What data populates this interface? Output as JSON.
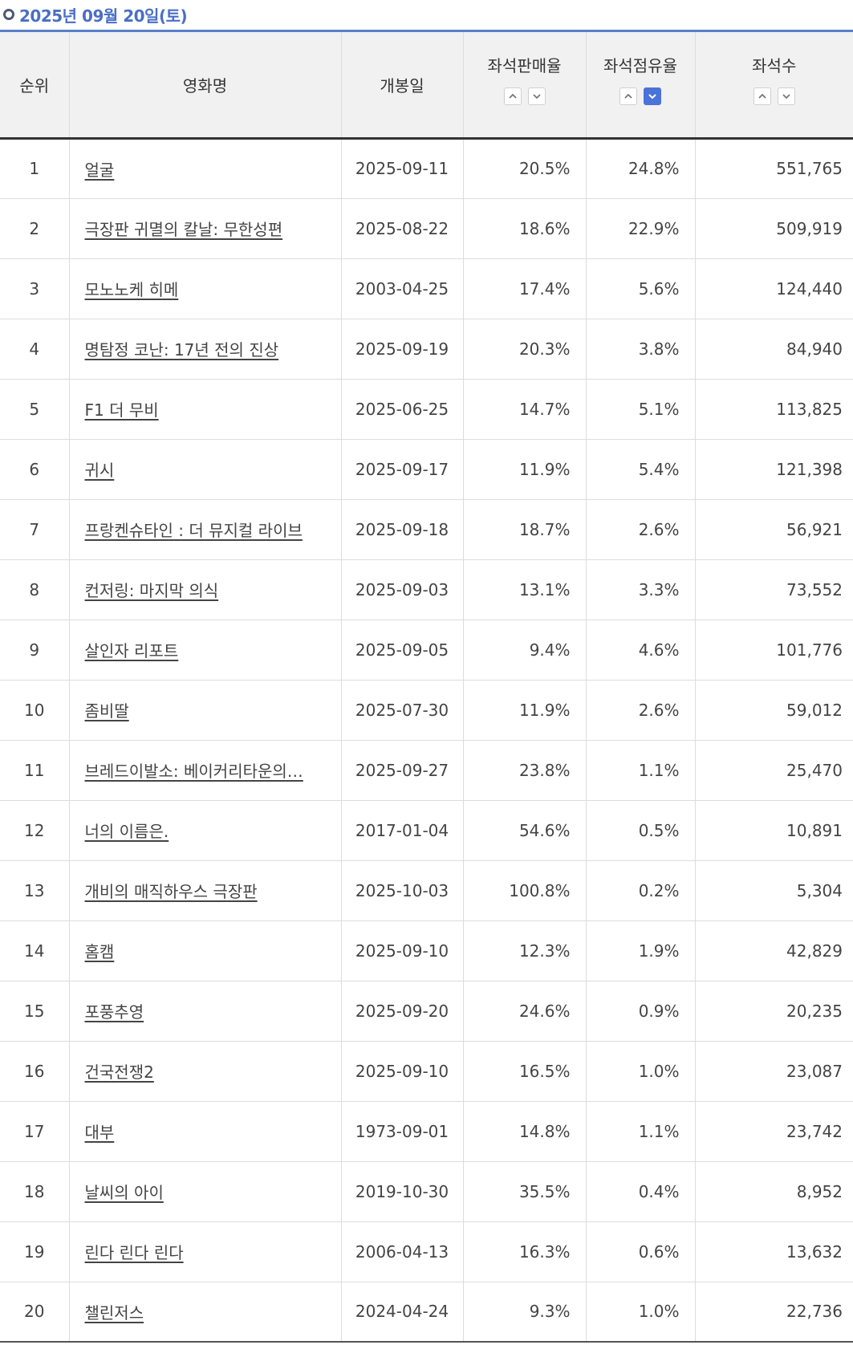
{
  "header": {
    "date_title": "2025년 09월 20일(토)"
  },
  "columns": {
    "rank": "순위",
    "title": "영화명",
    "release_date": "개봉일",
    "seat_sales_rate": "좌석판매율",
    "seat_share_rate": "좌석점유율",
    "seat_count": "좌석수"
  },
  "sort_icons": {
    "up": "chevron-up-icon",
    "down": "chevron-down-icon",
    "active_sort": "seat_share_rate-desc",
    "active_color": "#4a72d9"
  },
  "colors": {
    "accent": "#4a6fc4",
    "header_rule": "#5a7fc9"
  },
  "rows": [
    {
      "rank": "1",
      "title": "얼굴",
      "release_date": "2025-09-11",
      "seat_sales_rate": "20.5%",
      "seat_share_rate": "24.8%",
      "seat_count": "551,765"
    },
    {
      "rank": "2",
      "title": "극장판 귀멸의 칼날: 무한성편",
      "release_date": "2025-08-22",
      "seat_sales_rate": "18.6%",
      "seat_share_rate": "22.9%",
      "seat_count": "509,919"
    },
    {
      "rank": "3",
      "title": "모노노케 히메",
      "release_date": "2003-04-25",
      "seat_sales_rate": "17.4%",
      "seat_share_rate": "5.6%",
      "seat_count": "124,440"
    },
    {
      "rank": "4",
      "title": "명탐정 코난: 17년 전의 진상",
      "release_date": "2025-09-19",
      "seat_sales_rate": "20.3%",
      "seat_share_rate": "3.8%",
      "seat_count": "84,940"
    },
    {
      "rank": "5",
      "title": "F1 더 무비",
      "release_date": "2025-06-25",
      "seat_sales_rate": "14.7%",
      "seat_share_rate": "5.1%",
      "seat_count": "113,825"
    },
    {
      "rank": "6",
      "title": "귀시",
      "release_date": "2025-09-17",
      "seat_sales_rate": "11.9%",
      "seat_share_rate": "5.4%",
      "seat_count": "121,398"
    },
    {
      "rank": "7",
      "title": "프랑켄슈타인 : 더 뮤지컬 라이브",
      "release_date": "2025-09-18",
      "seat_sales_rate": "18.7%",
      "seat_share_rate": "2.6%",
      "seat_count": "56,921"
    },
    {
      "rank": "8",
      "title": "컨저링: 마지막 의식",
      "release_date": "2025-09-03",
      "seat_sales_rate": "13.1%",
      "seat_share_rate": "3.3%",
      "seat_count": "73,552"
    },
    {
      "rank": "9",
      "title": "살인자 리포트",
      "release_date": "2025-09-05",
      "seat_sales_rate": "9.4%",
      "seat_share_rate": "4.6%",
      "seat_count": "101,776"
    },
    {
      "rank": "10",
      "title": "좀비딸",
      "release_date": "2025-07-30",
      "seat_sales_rate": "11.9%",
      "seat_share_rate": "2.6%",
      "seat_count": "59,012"
    },
    {
      "rank": "11",
      "title": "브레드이발소: 베이커리타운의…",
      "release_date": "2025-09-27",
      "seat_sales_rate": "23.8%",
      "seat_share_rate": "1.1%",
      "seat_count": "25,470"
    },
    {
      "rank": "12",
      "title": "너의 이름은.",
      "release_date": "2017-01-04",
      "seat_sales_rate": "54.6%",
      "seat_share_rate": "0.5%",
      "seat_count": "10,891"
    },
    {
      "rank": "13",
      "title": "개비의 매직하우스 극장판",
      "release_date": "2025-10-03",
      "seat_sales_rate": "100.8%",
      "seat_share_rate": "0.2%",
      "seat_count": "5,304"
    },
    {
      "rank": "14",
      "title": "홈캠",
      "release_date": "2025-09-10",
      "seat_sales_rate": "12.3%",
      "seat_share_rate": "1.9%",
      "seat_count": "42,829"
    },
    {
      "rank": "15",
      "title": "포풍추영",
      "release_date": "2025-09-20",
      "seat_sales_rate": "24.6%",
      "seat_share_rate": "0.9%",
      "seat_count": "20,235"
    },
    {
      "rank": "16",
      "title": "건국전쟁2",
      "release_date": "2025-09-10",
      "seat_sales_rate": "16.5%",
      "seat_share_rate": "1.0%",
      "seat_count": "23,087"
    },
    {
      "rank": "17",
      "title": "대부",
      "release_date": "1973-09-01",
      "seat_sales_rate": "14.8%",
      "seat_share_rate": "1.1%",
      "seat_count": "23,742"
    },
    {
      "rank": "18",
      "title": "날씨의 아이",
      "release_date": "2019-10-30",
      "seat_sales_rate": "35.5%",
      "seat_share_rate": "0.4%",
      "seat_count": "8,952"
    },
    {
      "rank": "19",
      "title": "린다 린다 린다",
      "release_date": "2006-04-13",
      "seat_sales_rate": "16.3%",
      "seat_share_rate": "0.6%",
      "seat_count": "13,632"
    },
    {
      "rank": "20",
      "title": "챌린저스",
      "release_date": "2024-04-24",
      "seat_sales_rate": "9.3%",
      "seat_share_rate": "1.0%",
      "seat_count": "22,736"
    }
  ]
}
